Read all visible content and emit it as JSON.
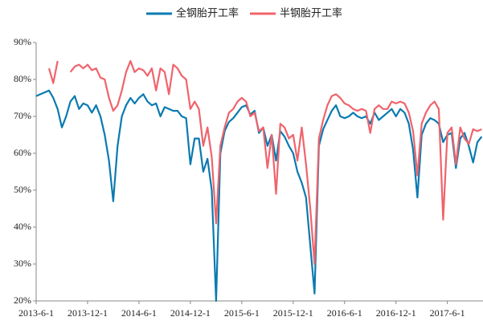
{
  "chart_data": {
    "type": "line",
    "categories": [
      "2013-6-1",
      null,
      null,
      null,
      null,
      null,
      null,
      null,
      null,
      null,
      null,
      null,
      "2013-12-1",
      null,
      null,
      null,
      null,
      null,
      null,
      null,
      null,
      null,
      null,
      null,
      "2014-6-1",
      null,
      null,
      null,
      null,
      null,
      null,
      null,
      null,
      null,
      null,
      null,
      "2014-12-1",
      null,
      null,
      null,
      null,
      null,
      null,
      null,
      null,
      null,
      null,
      null,
      "2015-6-1",
      null,
      null,
      null,
      null,
      null,
      null,
      null,
      null,
      null,
      null,
      null,
      "2015-12-1",
      null,
      null,
      null,
      null,
      null,
      null,
      null,
      null,
      null,
      null,
      null,
      "2016-6-1",
      null,
      null,
      null,
      null,
      null,
      null,
      null,
      null,
      null,
      null,
      null,
      "2016-12-1",
      null,
      null,
      null,
      null,
      null,
      null,
      null,
      null,
      null,
      null,
      null,
      "2017-6-1",
      null,
      null,
      null,
      null,
      null,
      null,
      null,
      null
    ],
    "series": [
      {
        "name": "全钢胎开工率",
        "color": "#0a7ab0",
        "values": [
          75.5,
          76,
          76.5,
          77,
          75,
          72,
          67,
          70,
          74,
          75.5,
          72,
          73.5,
          73,
          71,
          73,
          70,
          65,
          58,
          47,
          62,
          70,
          73,
          75,
          73.5,
          75,
          76,
          74,
          73,
          73.5,
          70,
          72.5,
          72,
          71.5,
          71.5,
          70,
          69.5,
          57,
          64,
          64,
          55,
          58.5,
          50,
          20,
          60,
          66,
          68.5,
          69.5,
          71,
          72.5,
          73,
          70.5,
          71.5,
          65.5,
          67,
          62,
          65,
          58,
          66,
          64.5,
          62,
          60,
          55,
          52,
          48,
          35,
          22,
          62,
          66.5,
          69,
          71.5,
          73,
          70,
          69.5,
          70,
          71,
          70,
          69.5,
          70,
          68,
          71,
          69,
          70,
          71,
          72,
          70,
          72,
          71,
          68,
          61,
          48,
          65,
          68,
          69.5,
          69,
          68,
          63,
          65,
          65.5,
          56,
          64,
          65.5,
          62,
          57.5,
          63,
          64.5
        ]
      },
      {
        "name": "半钢胎开工率",
        "color": "#f0636b",
        "values": [
          null,
          null,
          null,
          83,
          79,
          85,
          null,
          null,
          82,
          83.5,
          84,
          83,
          84,
          82.5,
          83,
          80.5,
          80,
          75,
          71.5,
          73,
          77,
          82,
          85,
          82,
          83,
          82.5,
          81,
          83,
          77,
          83,
          82,
          76,
          84,
          83,
          81,
          80,
          72,
          74,
          72,
          62,
          67,
          59,
          41,
          62,
          67,
          71,
          72,
          74,
          75,
          74,
          70,
          71,
          66,
          67,
          56,
          65,
          49,
          68,
          67,
          64,
          65,
          58,
          67,
          57,
          45,
          30,
          64,
          69,
          73,
          75.5,
          76,
          75,
          73.5,
          73,
          72,
          71.5,
          72,
          71.5,
          65.5,
          72,
          73,
          72,
          72,
          74,
          73.5,
          74,
          73.5,
          71,
          66,
          54,
          68,
          71,
          73,
          74,
          72,
          42,
          65.5,
          67,
          57,
          67,
          64,
          62.5,
          66.5,
          66,
          66.5
        ]
      }
    ],
    "ylim": [
      20,
      90
    ],
    "yticks": [
      {
        "value": 20,
        "label": "20%"
      },
      {
        "value": 30,
        "label": "30%"
      },
      {
        "value": 40,
        "label": "40%"
      },
      {
        "value": 50,
        "label": "50%"
      },
      {
        "value": 60,
        "label": "60%"
      },
      {
        "value": 70,
        "label": "70%"
      },
      {
        "value": 80,
        "label": "80%"
      },
      {
        "value": 90,
        "label": "90%"
      }
    ],
    "legend": "top",
    "grid": false
  }
}
